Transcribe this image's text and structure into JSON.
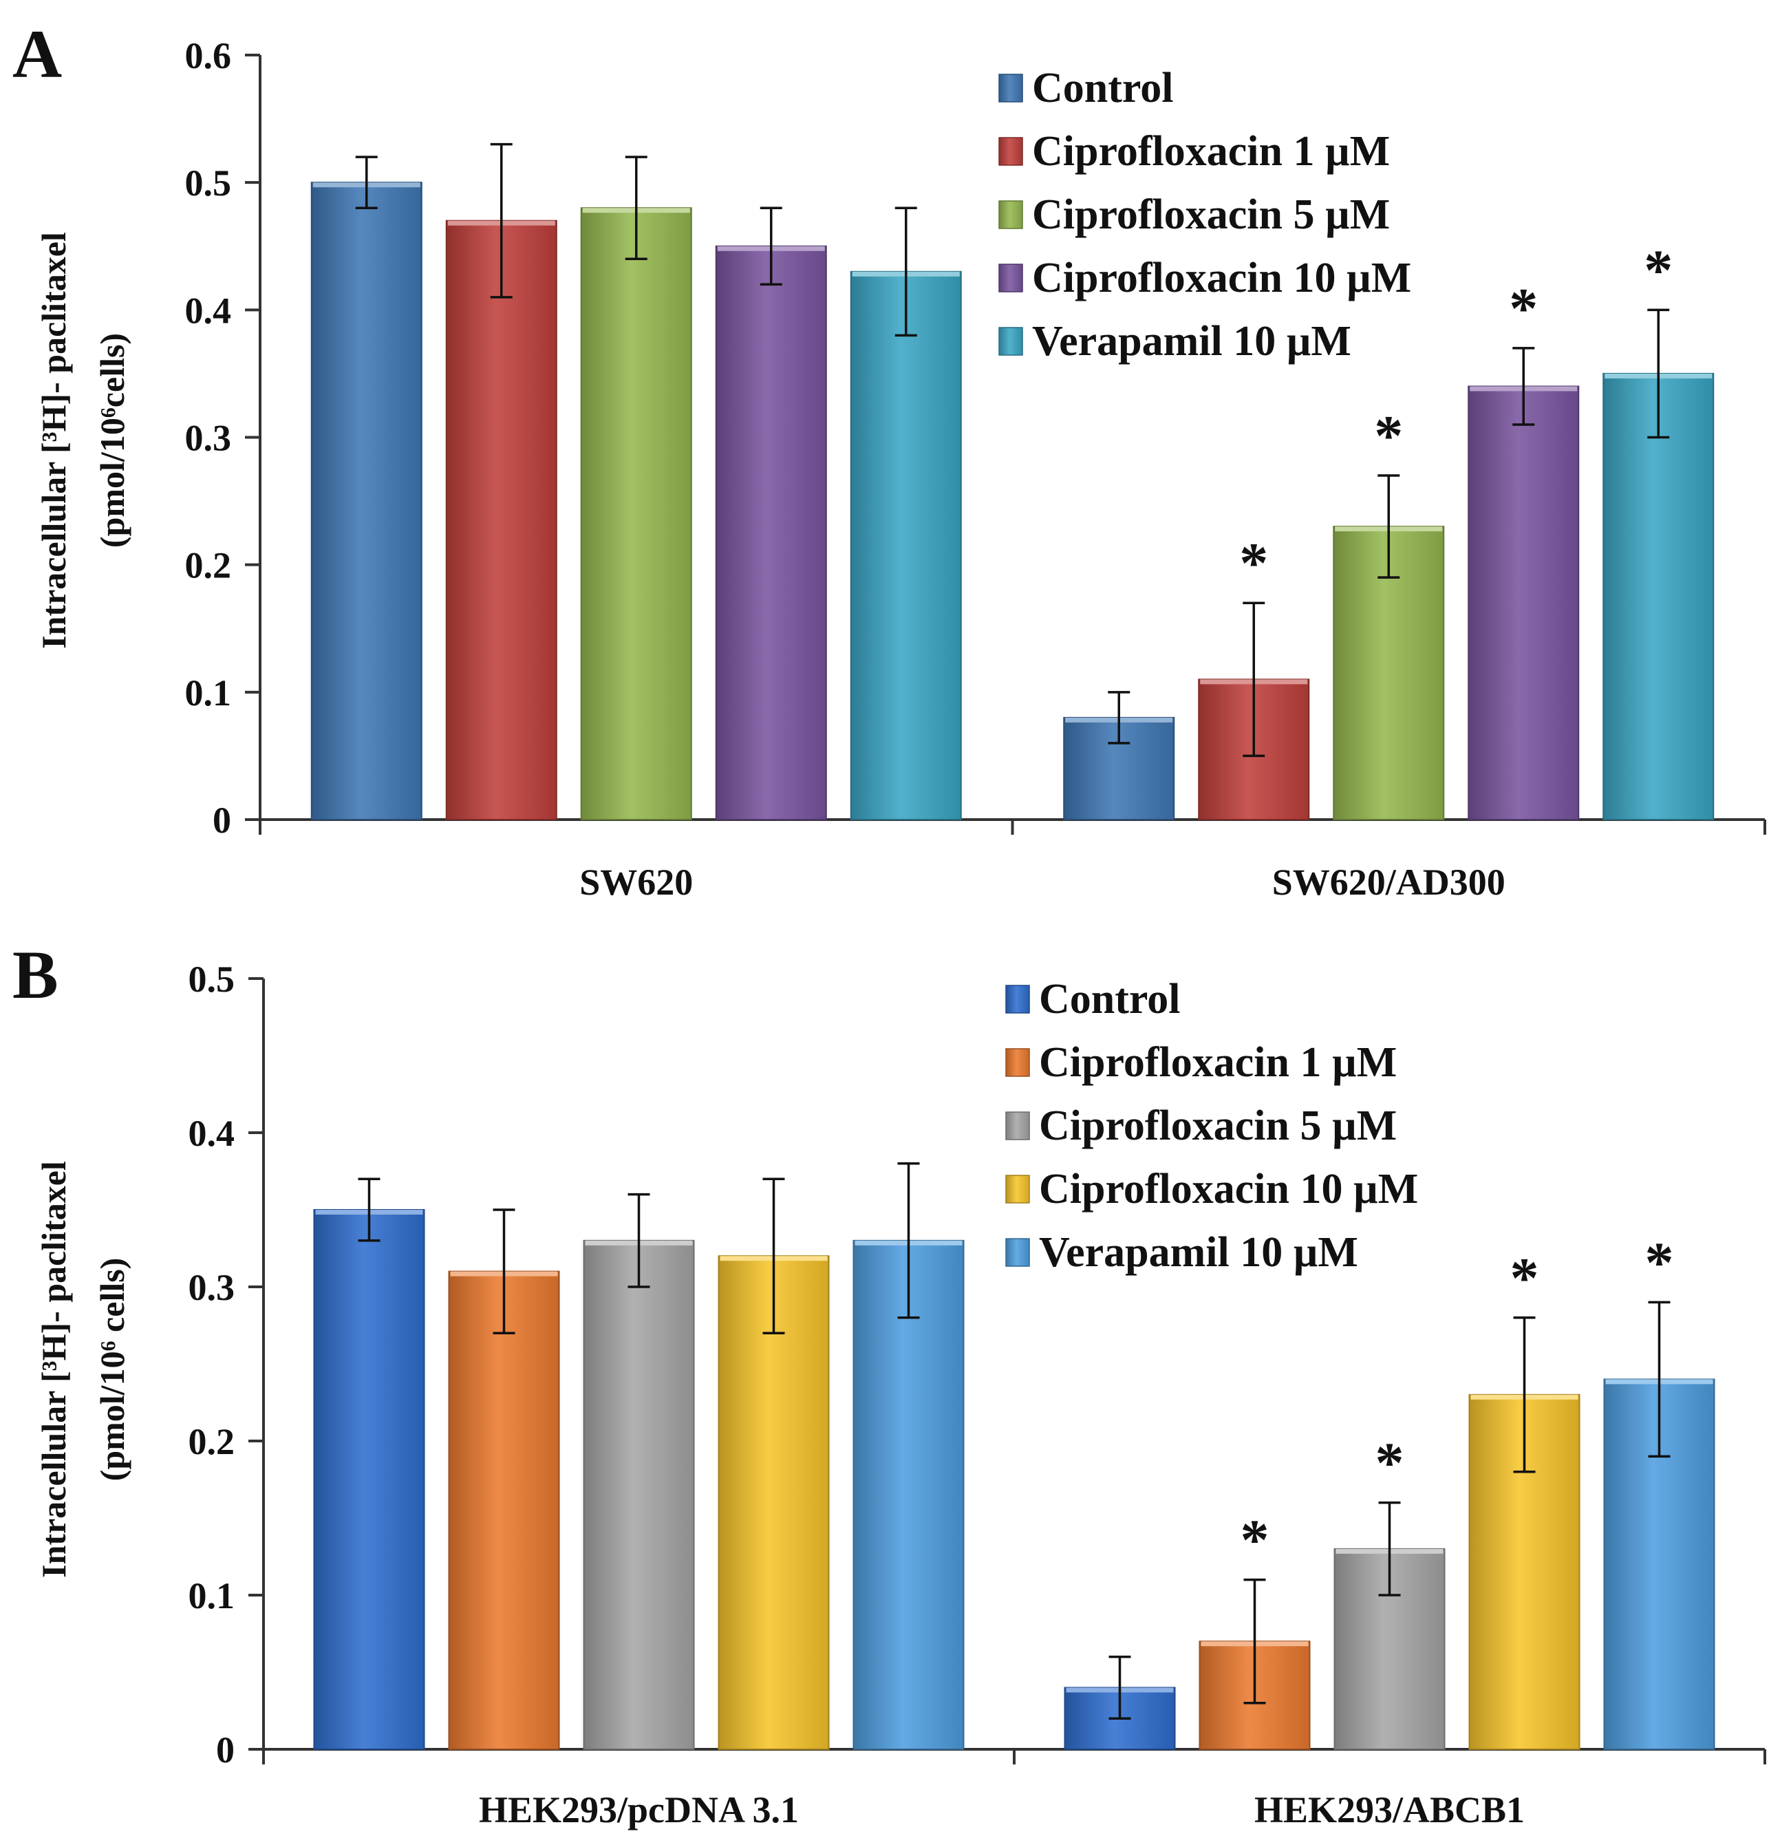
{
  "chart_data": [
    {
      "type": "bar",
      "panel": "A",
      "ylabel_line1": "Intracellular [³H]- paclitaxel",
      "ylabel_line2": "(pmol/10⁶cells)",
      "ylim": [
        0,
        0.6
      ],
      "yticks": [
        "0",
        "0.1",
        "0.2",
        "0.3",
        "0.4",
        "0.5",
        "0.6"
      ],
      "categories": [
        "SW620",
        "SW620/AD300"
      ],
      "series": [
        {
          "name": "Control",
          "color": "#3f78b5",
          "values": [
            0.5,
            0.08
          ],
          "errors": [
            0.02,
            0.02
          ],
          "significant": [
            false,
            false
          ]
        },
        {
          "name": "Ciprofloxacin 1 µM",
          "color": "#c0403c",
          "values": [
            0.47,
            0.11
          ],
          "errors": [
            0.06,
            0.06
          ],
          "significant": [
            false,
            true
          ]
        },
        {
          "name": "Ciprofloxacin 5 µM",
          "color": "#95b84f",
          "values": [
            0.48,
            0.23
          ],
          "errors": [
            0.04,
            0.04
          ],
          "significant": [
            false,
            true
          ]
        },
        {
          "name": "Ciprofloxacin 10 µM",
          "color": "#7a55a0",
          "values": [
            0.45,
            0.34
          ],
          "errors": [
            0.03,
            0.03
          ],
          "significant": [
            false,
            true
          ]
        },
        {
          "name": "Verapamil 10 µM",
          "color": "#3aa6c5",
          "values": [
            0.43,
            0.35
          ],
          "errors": [
            0.05,
            0.05
          ],
          "significant": [
            false,
            true
          ]
        }
      ],
      "significance_mark": "*"
    },
    {
      "type": "bar",
      "panel": "B",
      "ylabel_line1": "Intracellular [³H]- paclitaxel",
      "ylabel_line2": "(pmol/10⁶ cells)",
      "ylim": [
        0,
        0.5
      ],
      "yticks": [
        "0",
        "0.1",
        "0.2",
        "0.3",
        "0.4",
        "0.5"
      ],
      "categories": [
        "HEK293/pcDNA 3.1",
        "HEK293/ABCB1"
      ],
      "series": [
        {
          "name": "Control",
          "color": "#2f6fd0",
          "values": [
            0.35,
            0.04
          ],
          "errors": [
            0.02,
            0.02
          ],
          "significant": [
            false,
            false
          ]
        },
        {
          "name": "Ciprofloxacin 1 µM",
          "color": "#ec7a2f",
          "values": [
            0.31,
            0.07
          ],
          "errors": [
            0.04,
            0.04
          ],
          "significant": [
            false,
            true
          ]
        },
        {
          "name": "Ciprofloxacin 5 µM",
          "color": "#a6a6a6",
          "values": [
            0.33,
            0.13
          ],
          "errors": [
            0.03,
            0.03
          ],
          "significant": [
            false,
            true
          ]
        },
        {
          "name": "Ciprofloxacin 10 µM",
          "color": "#f7c52a",
          "values": [
            0.32,
            0.23
          ],
          "errors": [
            0.05,
            0.05
          ],
          "significant": [
            false,
            true
          ]
        },
        {
          "name": "Verapamil 10 µM",
          "color": "#4f9ee0",
          "values": [
            0.33,
            0.24
          ],
          "errors": [
            0.05,
            0.05
          ],
          "significant": [
            false,
            true
          ]
        }
      ],
      "significance_mark": "*"
    }
  ]
}
